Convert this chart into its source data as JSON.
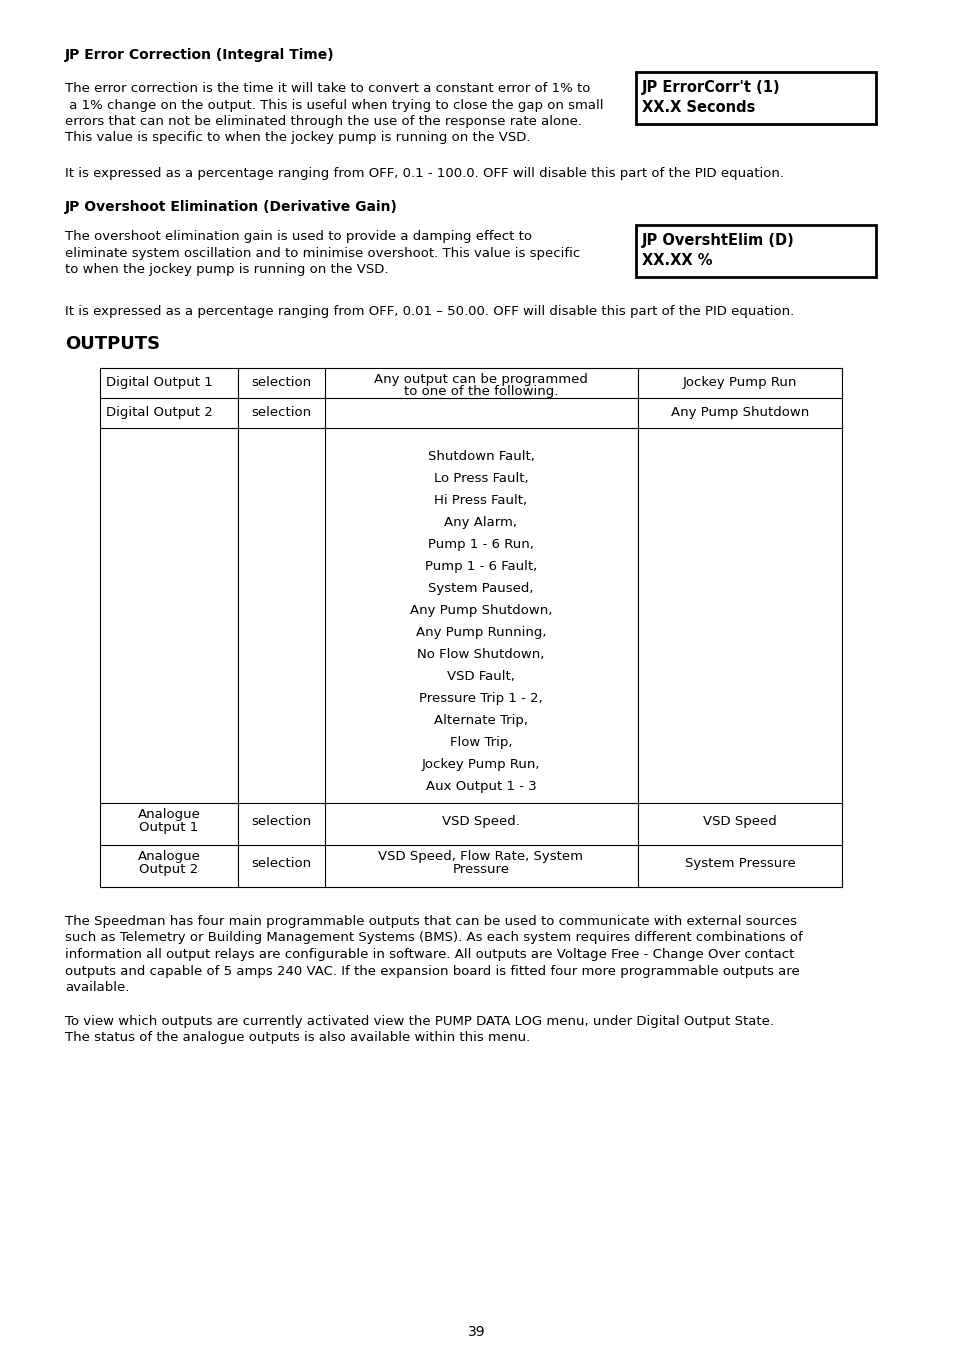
{
  "background_color": "#ffffff",
  "page_number": "39",
  "section1_heading": "JP Error Correction (Integral Time)",
  "section1_para1": "The error correction is the time it will take to convert a constant error of 1% to\n a 1% change on the output. This is useful when trying to close the gap on small\nerrors that can not be eliminated through the use of the response rate alone.\nThis value is specific to when the jockey pump is running on the VSD.",
  "section1_box_line1": "JP ErrorCorr't (1)",
  "section1_box_line2": "XX.X Seconds",
  "section1_para2": "It is expressed as a percentage ranging from OFF, 0.1 - 100.0. OFF will disable this part of the PID equation.",
  "section2_heading": "JP Overshoot Elimination (Derivative Gain)",
  "section2_para1": "The overshoot elimination gain is used to provide a damping effect to\neliminate system oscillation and to minimise overshoot. This value is specific\nto when the jockey pump is running on the VSD.",
  "section2_box_line1": "JP OvershtElim (D)",
  "section2_box_line2": "XX.XX %",
  "section2_para2": "It is expressed as a percentage ranging from OFF, 0.01 – 50.00. OFF will disable this part of the PID equation.",
  "outputs_heading": "OUTPUTS",
  "table_col3_list": "Shutdown Fault,\nLo Press Fault,\nHi Press Fault,\nAny Alarm,\nPump 1 - 6 Run,\nPump 1 - 6 Fault,\nSystem Paused,\nAny Pump Shutdown,\nAny Pump Running,\nNo Flow Shutdown,\nVSD Fault,\nPressure Trip 1 - 2,\nAlternate Trip,\nFlow Trip,\nJockey Pump Run,\nAux Output 1 - 3",
  "footer_para1": "The Speedman has four main programmable outputs that can be used to communicate with external sources\nsuch as Telemetry or Building Management Systems (BMS). As each system requires different combinations of\ninformation all output relays are configurable in software. All outputs are Voltage Free - Change Over contact\noutputs and capable of 5 amps 240 VAC. If the expansion board is fitted four more programmable outputs are\navailable.",
  "footer_para2": "To view which outputs are currently activated view the PUMP DATA LOG menu, under Digital Output State.\nThe status of the analogue outputs is also available within this menu."
}
